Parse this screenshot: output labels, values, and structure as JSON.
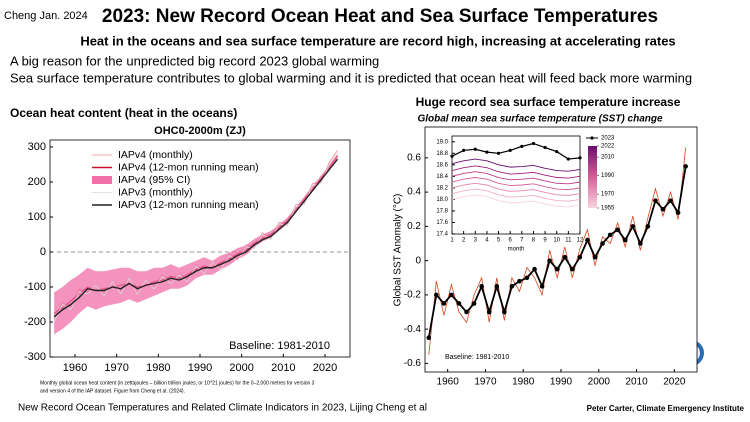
{
  "header": {
    "author_date": "Cheng Jan. 2024",
    "title": "2023: New Record Ocean Heat and Sea Surface Temperatures",
    "subtitle": "Heat in the oceans and sea surface temperature are record high, increasing at accelerating rates",
    "bullets": [
      "A big reason for the unpredicted big record 2023 global warming",
      "Sea surface temperature contributes to global warming and it is predicted that ocean heat will feed back more warming"
    ]
  },
  "sections": {
    "left": "Ocean heat content (heat in the oceans)",
    "right": "Huge record sea surface temperature increase"
  },
  "chart_data": [
    {
      "type": "line",
      "title": "OHC0-2000m (ZJ)",
      "annotation": "Baseline: 1981-2010",
      "caption": [
        "Monthly global ocean heat content (in zettajoules – billion trillion joules, or 10^21 joules) for the 0–2,000 metres for version 3",
        "and version 4 of the IAP dataset. Figure from Cheng et al. (2024)."
      ],
      "x": [
        1955,
        1957,
        1959,
        1961,
        1963,
        1965,
        1967,
        1969,
        1971,
        1973,
        1975,
        1977,
        1979,
        1981,
        1983,
        1985,
        1987,
        1989,
        1991,
        1993,
        1995,
        1997,
        1999,
        2001,
        2003,
        2005,
        2007,
        2009,
        2011,
        2013,
        2015,
        2017,
        2019,
        2021,
        2023
      ],
      "xlim": [
        1954,
        2026
      ],
      "xticks": [
        1960,
        1970,
        1980,
        1990,
        2000,
        2010,
        2020
      ],
      "ylim": [
        -300,
        320
      ],
      "yticks": [
        -300,
        -200,
        -100,
        0,
        100,
        200,
        300
      ],
      "reference_lines": [
        0
      ],
      "series": [
        {
          "name": "IAPv4 (monthly)",
          "color": "#f08a8a",
          "values": [
            -190,
            -145,
            -155,
            -105,
            -115,
            -95,
            -120,
            -85,
            -110,
            -75,
            -115,
            -80,
            -100,
            -65,
            -85,
            -60,
            -80,
            -35,
            -55,
            -30,
            -45,
            -5,
            -20,
            20,
            15,
            55,
            40,
            85,
            80,
            135,
            140,
            195,
            200,
            255,
            290
          ]
        },
        {
          "name": "IAPv4 (12-mon running mean)",
          "color": "#c8102e",
          "values": [
            -175,
            -160,
            -140,
            -120,
            -100,
            -110,
            -105,
            -100,
            -95,
            -90,
            -100,
            -95,
            -85,
            -80,
            -70,
            -75,
            -65,
            -50,
            -40,
            -45,
            -30,
            -20,
            -5,
            5,
            25,
            40,
            50,
            70,
            90,
            120,
            150,
            180,
            210,
            240,
            275
          ]
        },
        {
          "name": "IAPv4 (95% CI)",
          "color": "#f06fa8",
          "lower": [
            -235,
            -220,
            -200,
            -175,
            -155,
            -165,
            -155,
            -150,
            -145,
            -135,
            -145,
            -135,
            -125,
            -115,
            -105,
            -105,
            -95,
            -75,
            -65,
            -65,
            -50,
            -38,
            -21,
            -9,
            13,
            30,
            40,
            61,
            81,
            112,
            142,
            172,
            202,
            232,
            267
          ],
          "upper": [
            -115,
            -100,
            -80,
            -65,
            -45,
            -55,
            -55,
            -50,
            -45,
            -45,
            -55,
            -55,
            -45,
            -45,
            -35,
            -45,
            -35,
            -25,
            -15,
            -25,
            -10,
            -2,
            11,
            19,
            37,
            50,
            60,
            79,
            99,
            128,
            158,
            188,
            218,
            248,
            283
          ]
        },
        {
          "name": "IAPv3 (monthly)",
          "color": "#d9d9d9",
          "values": [
            -200,
            -150,
            -165,
            -115,
            -120,
            -95,
            -125,
            -85,
            -120,
            -75,
            -120,
            -80,
            -105,
            -70,
            -90,
            -65,
            -85,
            -40,
            -60,
            -30,
            -50,
            -10,
            -25,
            15,
            10,
            50,
            35,
            80,
            75,
            130,
            135,
            190,
            195,
            250,
            280
          ]
        },
        {
          "name": "IAPv3 (12-mon running mean)",
          "color": "#222222",
          "values": [
            -185,
            -165,
            -150,
            -130,
            -105,
            -110,
            -110,
            -100,
            -105,
            -90,
            -105,
            -95,
            -90,
            -85,
            -75,
            -80,
            -70,
            -55,
            -45,
            -45,
            -35,
            -25,
            -10,
            0,
            20,
            35,
            45,
            65,
            85,
            115,
            145,
            175,
            205,
            235,
            265
          ]
        }
      ]
    },
    {
      "type": "line",
      "title": "Global mean sea surface temperature (SST) change",
      "ylabel": "Global SST Anomaly (°C)",
      "annotation": "Baseline: 1981-2010",
      "x": [
        1955,
        1957,
        1959,
        1961,
        1963,
        1965,
        1967,
        1969,
        1971,
        1973,
        1975,
        1977,
        1979,
        1981,
        1983,
        1985,
        1987,
        1989,
        1991,
        1993,
        1995,
        1997,
        1999,
        2001,
        2003,
        2005,
        2007,
        2009,
        2011,
        2013,
        2015,
        2017,
        2019,
        2021,
        2023
      ],
      "xlim": [
        1954,
        2026
      ],
      "xticks": [
        1960,
        1970,
        1980,
        1990,
        2000,
        2010,
        2020
      ],
      "ylim": [
        -0.65,
        0.78
      ],
      "yticks": [
        -0.6,
        -0.4,
        -0.2,
        0,
        0.2,
        0.4,
        0.6
      ],
      "series": [
        {
          "color": "#d2461e",
          "values": [
            -0.55,
            -0.12,
            -0.32,
            -0.14,
            -0.3,
            -0.36,
            -0.2,
            -0.1,
            -0.36,
            -0.1,
            -0.35,
            -0.1,
            -0.18,
            -0.04,
            -0.1,
            -0.2,
            0.06,
            -0.1,
            0.08,
            -0.1,
            0.07,
            0.18,
            -0.03,
            0.14,
            0.1,
            0.22,
            0.08,
            0.26,
            0.06,
            0.25,
            0.42,
            0.26,
            0.4,
            0.24,
            0.66
          ]
        },
        {
          "color": "#000000",
          "markers": true,
          "values": [
            -0.45,
            -0.2,
            -0.25,
            -0.2,
            -0.25,
            -0.3,
            -0.25,
            -0.15,
            -0.3,
            -0.15,
            -0.3,
            -0.15,
            -0.12,
            -0.1,
            -0.05,
            -0.15,
            0.0,
            -0.05,
            0.02,
            -0.05,
            0.02,
            0.12,
            0.02,
            0.1,
            0.15,
            0.18,
            0.12,
            0.2,
            0.1,
            0.2,
            0.35,
            0.3,
            0.35,
            0.28,
            0.55
          ]
        }
      ]
    },
    {
      "type": "line",
      "xlabel": "month",
      "x": [
        1,
        2,
        3,
        4,
        5,
        6,
        7,
        8,
        9,
        10,
        11,
        12
      ],
      "xlim": [
        1,
        12
      ],
      "xticks": [
        1,
        2,
        3,
        4,
        5,
        6,
        7,
        8,
        9,
        10,
        11,
        12
      ],
      "ylim": [
        17.4,
        19.1
      ],
      "yticks": [
        17.4,
        17.6,
        17.8,
        {
          "value": 18,
          "label": "18.0"
        },
        18.2,
        18.4,
        18.6,
        18.8,
        {
          "value": 19,
          "label": "19.0"
        }
      ],
      "colorbar_ticks": [
        2022,
        2010,
        1990,
        1970,
        1955
      ],
      "series": [
        {
          "color": "#f7d4de",
          "values": [
            18.0,
            18.05,
            18.08,
            18.05,
            17.98,
            17.94,
            17.95,
            17.97,
            17.92,
            17.88,
            17.87,
            17.9
          ]
        },
        {
          "color": "#eeb0c6",
          "values": [
            18.1,
            18.15,
            18.18,
            18.15,
            18.08,
            18.04,
            18.05,
            18.07,
            18.02,
            17.98,
            17.97,
            18.0
          ]
        },
        {
          "color": "#e388ad",
          "values": [
            18.2,
            18.25,
            18.28,
            18.25,
            18.18,
            18.14,
            18.15,
            18.17,
            18.12,
            18.08,
            18.07,
            18.1
          ]
        },
        {
          "color": "#d65f97",
          "values": [
            18.3,
            18.35,
            18.38,
            18.35,
            18.28,
            18.24,
            18.25,
            18.27,
            18.22,
            18.18,
            18.17,
            18.2
          ]
        },
        {
          "color": "#c23a86",
          "values": [
            18.4,
            18.45,
            18.48,
            18.45,
            18.38,
            18.34,
            18.35,
            18.37,
            18.32,
            18.28,
            18.27,
            18.3
          ]
        },
        {
          "color": "#9e1f7d",
          "values": [
            18.5,
            18.55,
            18.58,
            18.55,
            18.48,
            18.44,
            18.45,
            18.47,
            18.42,
            18.38,
            18.37,
            18.4
          ]
        },
        {
          "color": "#6b0f6e",
          "values": [
            18.62,
            18.67,
            18.7,
            18.67,
            18.6,
            18.56,
            18.57,
            18.59,
            18.54,
            18.5,
            18.49,
            18.52
          ]
        },
        {
          "name": "2023",
          "color": "#000000",
          "markers": true,
          "values": [
            18.75,
            18.85,
            18.87,
            18.82,
            18.8,
            18.85,
            18.92,
            18.97,
            18.9,
            18.83,
            18.7,
            18.72
          ]
        }
      ]
    }
  ],
  "footer": {
    "left": "New Record Ocean Temperatures and Related Climate Indicators in 2023, Lijing Cheng et al",
    "right": "Peter Carter, Climate Emergency Institute"
  }
}
